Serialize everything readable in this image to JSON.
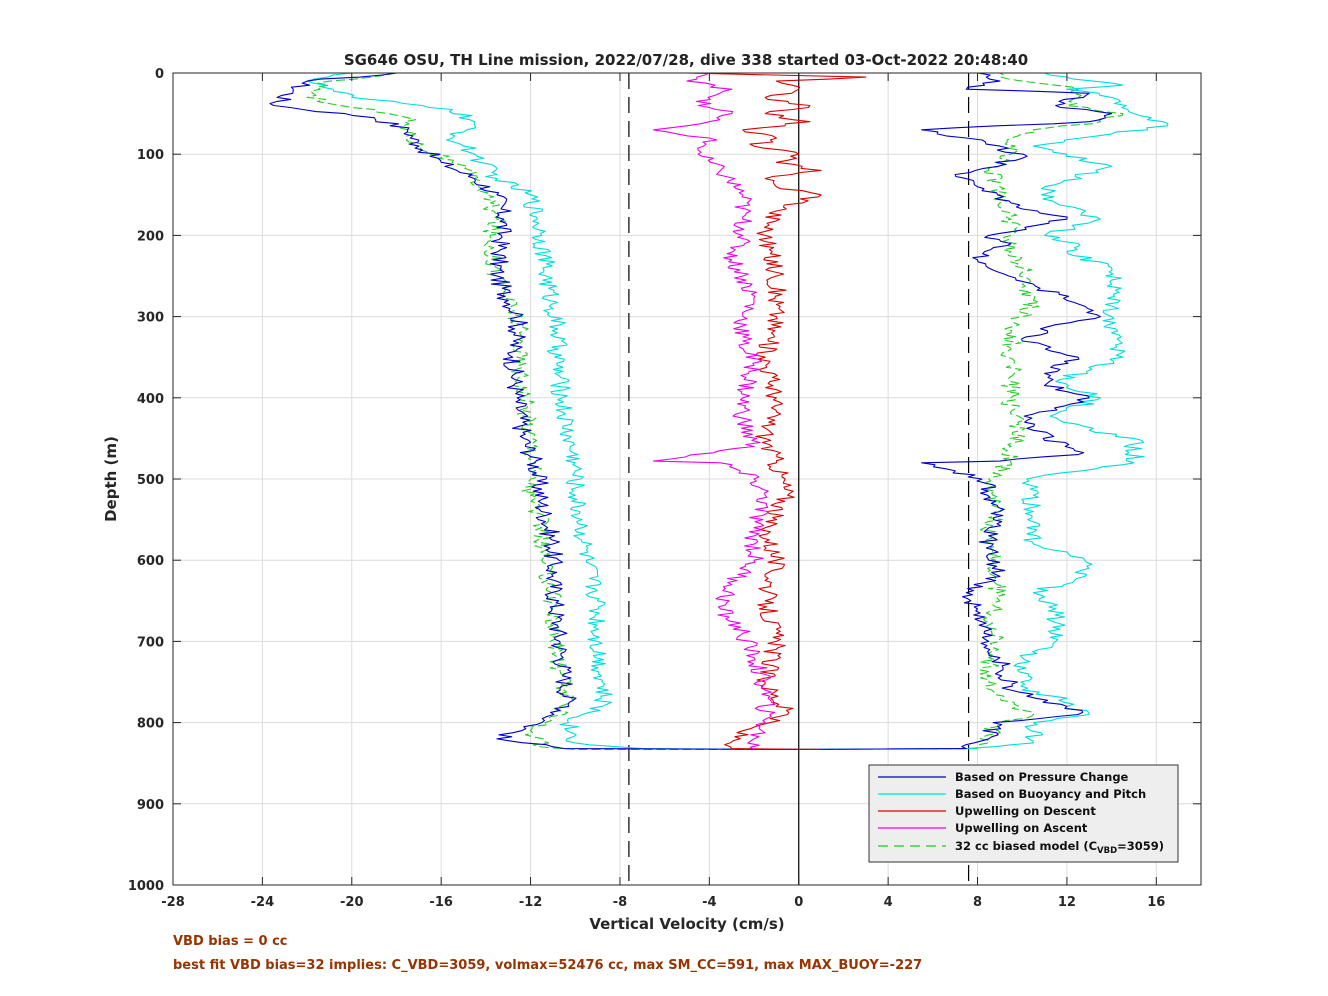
{
  "chart_data": {
    "type": "line",
    "title": "SG646 OSU, TH Line mission, 2022/07/28, dive 338 started 03-Oct-2022 20:48:40",
    "xlabel": "Vertical Velocity (cm/s)",
    "ylabel": "Depth (m)",
    "xlim": [
      -28,
      18
    ],
    "ylim": [
      0,
      1000
    ],
    "y_reversed": true,
    "xticks": [
      -28,
      -24,
      -20,
      -16,
      -12,
      -8,
      -4,
      0,
      4,
      8,
      12,
      16
    ],
    "yticks": [
      0,
      100,
      200,
      300,
      400,
      500,
      600,
      700,
      800,
      900,
      1000
    ],
    "grid": true,
    "legend_position": "bottom-right",
    "reference_lines": [
      {
        "type": "dashed",
        "x": -7.6,
        "color": "#000000"
      },
      {
        "type": "solid",
        "x": 0,
        "color": "#000000"
      },
      {
        "type": "dashed",
        "x": 7.6,
        "color": "#000000"
      }
    ],
    "series": [
      {
        "name": "Based on Pressure Change",
        "color": "#0000cc",
        "style": "solid",
        "points": [
          [
            -18,
            0
          ],
          [
            -22,
            10
          ],
          [
            -23.5,
            40
          ],
          [
            -19,
            55
          ],
          [
            -17.5,
            70
          ],
          [
            -17,
            90
          ],
          [
            -16,
            110
          ],
          [
            -14.5,
            130
          ],
          [
            -13.5,
            150
          ],
          [
            -13.2,
            180
          ],
          [
            -13.3,
            200
          ],
          [
            -13.5,
            250
          ],
          [
            -13.0,
            280
          ],
          [
            -12.5,
            300
          ],
          [
            -12.8,
            350
          ],
          [
            -12.6,
            400
          ],
          [
            -12.3,
            450
          ],
          [
            -11.8,
            480
          ],
          [
            -11.5,
            530
          ],
          [
            -11.0,
            580
          ],
          [
            -11.0,
            620
          ],
          [
            -10.8,
            680
          ],
          [
            -10.5,
            740
          ],
          [
            -10.3,
            780
          ],
          [
            -11.5,
            800
          ],
          [
            -13.5,
            820
          ],
          [
            -10.5,
            832
          ],
          [
            0,
            833
          ],
          [
            7.5,
            832
          ],
          [
            8.5,
            820
          ],
          [
            8.7,
            800
          ],
          [
            12.5,
            790
          ],
          [
            12.0,
            780
          ],
          [
            9.5,
            760
          ],
          [
            9.0,
            720
          ],
          [
            8.5,
            700
          ],
          [
            8.0,
            660
          ],
          [
            7.5,
            640
          ],
          [
            9.0,
            620
          ],
          [
            8.5,
            600
          ],
          [
            8.5,
            570
          ],
          [
            9.0,
            540
          ],
          [
            8.2,
            500
          ],
          [
            5.5,
            480
          ],
          [
            9.0,
            478
          ],
          [
            12.5,
            470
          ],
          [
            10.5,
            440
          ],
          [
            10.5,
            420
          ],
          [
            13.0,
            400
          ],
          [
            11.5,
            390
          ],
          [
            11.0,
            370
          ],
          [
            12.5,
            350
          ],
          [
            10.0,
            330
          ],
          [
            11.5,
            310
          ],
          [
            13.5,
            300
          ],
          [
            12.0,
            280
          ],
          [
            10.5,
            260
          ],
          [
            8.0,
            230
          ],
          [
            9.5,
            210
          ],
          [
            8.5,
            200
          ],
          [
            12.0,
            180
          ],
          [
            9.5,
            160
          ],
          [
            8.0,
            140
          ],
          [
            7.0,
            125
          ],
          [
            10.0,
            105
          ],
          [
            9.0,
            90
          ],
          [
            7.5,
            80
          ],
          [
            5.5,
            70
          ],
          [
            13.0,
            60
          ],
          [
            14.0,
            50
          ],
          [
            11.5,
            40
          ],
          [
            13.0,
            25
          ],
          [
            7.5,
            20
          ],
          [
            9.0,
            10
          ],
          [
            8.0,
            0
          ]
        ]
      },
      {
        "name": "Based on Buoyancy and Pitch",
        "color": "#00dddd",
        "style": "solid",
        "points": [
          [
            -20,
            0
          ],
          [
            -22,
            10
          ],
          [
            -20,
            30
          ],
          [
            -15.5,
            45
          ],
          [
            -14.5,
            60
          ],
          [
            -15.5,
            80
          ],
          [
            -14.5,
            100
          ],
          [
            -13.5,
            130
          ],
          [
            -12.0,
            150
          ],
          [
            -11.7,
            180
          ],
          [
            -11.5,
            200
          ],
          [
            -11.3,
            250
          ],
          [
            -11.0,
            290
          ],
          [
            -10.8,
            320
          ],
          [
            -10.8,
            360
          ],
          [
            -10.6,
            400
          ],
          [
            -10.3,
            450
          ],
          [
            -10.0,
            480
          ],
          [
            -10.0,
            520
          ],
          [
            -9.7,
            560
          ],
          [
            -9.5,
            600
          ],
          [
            -9.0,
            650
          ],
          [
            -9.0,
            700
          ],
          [
            -8.8,
            750
          ],
          [
            -8.8,
            780
          ],
          [
            -10.3,
            800
          ],
          [
            -10.0,
            825
          ],
          [
            -7.0,
            832
          ],
          [
            0,
            833
          ],
          [
            7.5,
            832
          ],
          [
            10.5,
            825
          ],
          [
            10.5,
            800
          ],
          [
            13.0,
            790
          ],
          [
            12.0,
            780
          ],
          [
            12.0,
            770
          ],
          [
            10.0,
            760
          ],
          [
            10.0,
            720
          ],
          [
            11.5,
            700
          ],
          [
            11.5,
            660
          ],
          [
            10.5,
            640
          ],
          [
            12.8,
            620
          ],
          [
            12.8,
            600
          ],
          [
            10.5,
            580
          ],
          [
            10.5,
            540
          ],
          [
            10.2,
            500
          ],
          [
            15.0,
            480
          ],
          [
            15.0,
            450
          ],
          [
            13.0,
            440
          ],
          [
            11.5,
            420
          ],
          [
            13.5,
            400
          ],
          [
            11.5,
            380
          ],
          [
            14.5,
            350
          ],
          [
            14.0,
            320
          ],
          [
            14.0,
            300
          ],
          [
            14.0,
            260
          ],
          [
            14.0,
            240
          ],
          [
            12.0,
            220
          ],
          [
            12.5,
            210
          ],
          [
            11.0,
            200
          ],
          [
            13.5,
            180
          ],
          [
            11.5,
            160
          ],
          [
            11.0,
            140
          ],
          [
            14.0,
            115
          ],
          [
            12.0,
            100
          ],
          [
            10.5,
            90
          ],
          [
            14.0,
            75
          ],
          [
            16.5,
            65
          ],
          [
            15.0,
            50
          ],
          [
            14.0,
            30
          ],
          [
            12.0,
            20
          ],
          [
            14.5,
            15
          ],
          [
            12.0,
            5
          ],
          [
            11.0,
            0
          ]
        ]
      },
      {
        "name": "Upwelling on Descent",
        "color": "#dd0000",
        "style": "solid",
        "points": [
          [
            -5,
            0
          ],
          [
            3,
            5
          ],
          [
            -1,
            10
          ],
          [
            0,
            20
          ],
          [
            -1.5,
            30
          ],
          [
            0.5,
            40
          ],
          [
            -1.5,
            50
          ],
          [
            0.5,
            60
          ],
          [
            -2.5,
            70
          ],
          [
            -1.0,
            80
          ],
          [
            -2.0,
            90
          ],
          [
            0.0,
            100
          ],
          [
            -1.0,
            110
          ],
          [
            1.0,
            120
          ],
          [
            -1.5,
            130
          ],
          [
            -1.0,
            140
          ],
          [
            1.0,
            150
          ],
          [
            -1.0,
            170
          ],
          [
            -1.5,
            200
          ],
          [
            -1.0,
            250
          ],
          [
            -1.0,
            300
          ],
          [
            -1.5,
            350
          ],
          [
            -1.0,
            400
          ],
          [
            -1.5,
            450
          ],
          [
            -1.0,
            480
          ],
          [
            -0.5,
            520
          ],
          [
            -1.5,
            560
          ],
          [
            -1.0,
            600
          ],
          [
            -1.5,
            650
          ],
          [
            -1.0,
            700
          ],
          [
            -1.5,
            750
          ],
          [
            -0.5,
            790
          ],
          [
            -2.5,
            810
          ],
          [
            -3.0,
            832
          ],
          [
            1.0,
            833
          ]
        ]
      },
      {
        "name": "Upwelling on Ascent",
        "color": "#ee00ee",
        "style": "solid",
        "points": [
          [
            -4,
            0
          ],
          [
            -5,
            10
          ],
          [
            -3,
            20
          ],
          [
            -4.5,
            40
          ],
          [
            -3,
            50
          ],
          [
            -4,
            60
          ],
          [
            -6.5,
            70
          ],
          [
            -4.0,
            80
          ],
          [
            -4.5,
            100
          ],
          [
            -3.5,
            120
          ],
          [
            -2.5,
            150
          ],
          [
            -2.5,
            180
          ],
          [
            -2.5,
            200
          ],
          [
            -3.0,
            230
          ],
          [
            -2.5,
            250
          ],
          [
            -2.0,
            280
          ],
          [
            -2.5,
            300
          ],
          [
            -2.5,
            330
          ],
          [
            -2.0,
            360
          ],
          [
            -2.5,
            400
          ],
          [
            -2.5,
            430
          ],
          [
            -2.0,
            460
          ],
          [
            -6.5,
            478
          ],
          [
            -3.5,
            480
          ],
          [
            -2.0,
            500
          ],
          [
            -1.5,
            520
          ],
          [
            -2.0,
            560
          ],
          [
            -2.0,
            600
          ],
          [
            -3.0,
            630
          ],
          [
            -3.5,
            660
          ],
          [
            -2.5,
            690
          ],
          [
            -2.0,
            720
          ],
          [
            -1.5,
            760
          ],
          [
            -1.5,
            800
          ],
          [
            -2.0,
            820
          ],
          [
            -2.0,
            833
          ]
        ]
      },
      {
        "name": "32 cc biased model (C_VBD=3059)",
        "color": "#22cc22",
        "style": "dashed",
        "points": [
          [
            -18,
            0
          ],
          [
            -21,
            10
          ],
          [
            -22,
            30
          ],
          [
            -17.5,
            55
          ],
          [
            -17.5,
            70
          ],
          [
            -17.0,
            90
          ],
          [
            -15.5,
            110
          ],
          [
            -14.5,
            130
          ],
          [
            -14.0,
            150
          ],
          [
            -13.5,
            180
          ],
          [
            -13.8,
            200
          ],
          [
            -13.5,
            250
          ],
          [
            -12.8,
            290
          ],
          [
            -12.5,
            320
          ],
          [
            -12.5,
            360
          ],
          [
            -12.3,
            400
          ],
          [
            -12.0,
            440
          ],
          [
            -11.8,
            480
          ],
          [
            -12.0,
            520
          ],
          [
            -11.5,
            560
          ],
          [
            -11.5,
            600
          ],
          [
            -11.0,
            640
          ],
          [
            -11.0,
            680
          ],
          [
            -10.8,
            720
          ],
          [
            -10.5,
            760
          ],
          [
            -10.5,
            790
          ],
          [
            -12.0,
            810
          ],
          [
            -11.5,
            830
          ],
          [
            -10.0,
            833
          ],
          [
            0,
            833
          ],
          [
            8.0,
            832
          ],
          [
            8.5,
            815
          ],
          [
            9.0,
            800
          ],
          [
            10.5,
            790
          ],
          [
            9.0,
            770
          ],
          [
            8.5,
            750
          ],
          [
            8.5,
            720
          ],
          [
            9.0,
            700
          ],
          [
            8.5,
            670
          ],
          [
            9.0,
            650
          ],
          [
            8.8,
            620
          ],
          [
            8.8,
            600
          ],
          [
            8.5,
            570
          ],
          [
            8.8,
            540
          ],
          [
            8.5,
            500
          ],
          [
            9.5,
            480
          ],
          [
            9.5,
            460
          ],
          [
            10.0,
            440
          ],
          [
            9.5,
            420
          ],
          [
            9.5,
            400
          ],
          [
            9.5,
            380
          ],
          [
            9.5,
            360
          ],
          [
            9.5,
            340
          ],
          [
            9.5,
            320
          ],
          [
            10.0,
            300
          ],
          [
            10.5,
            280
          ],
          [
            10.0,
            260
          ],
          [
            10.0,
            240
          ],
          [
            9.5,
            220
          ],
          [
            9.5,
            200
          ],
          [
            9.5,
            180
          ],
          [
            9.0,
            160
          ],
          [
            9.0,
            140
          ],
          [
            8.5,
            120
          ],
          [
            9.5,
            100
          ],
          [
            9.5,
            80
          ],
          [
            10.5,
            70
          ],
          [
            13.5,
            60
          ],
          [
            14.5,
            50
          ],
          [
            12.0,
            40
          ],
          [
            12.5,
            20
          ],
          [
            10.0,
            10
          ],
          [
            9.0,
            0
          ]
        ]
      }
    ]
  },
  "annotations": {
    "vbd_bias": "VBD bias = 0 cc",
    "best_fit": "best fit VBD bias=32 implies: C_VBD=3059, volmax=52476 cc, max SM_CC=591, max MAX_BUOY=-227"
  },
  "legend_labels": {
    "biased_model_prefix": "32 cc biased model (C",
    "biased_model_subscript": "VBD",
    "biased_model_suffix": "=3059)"
  }
}
